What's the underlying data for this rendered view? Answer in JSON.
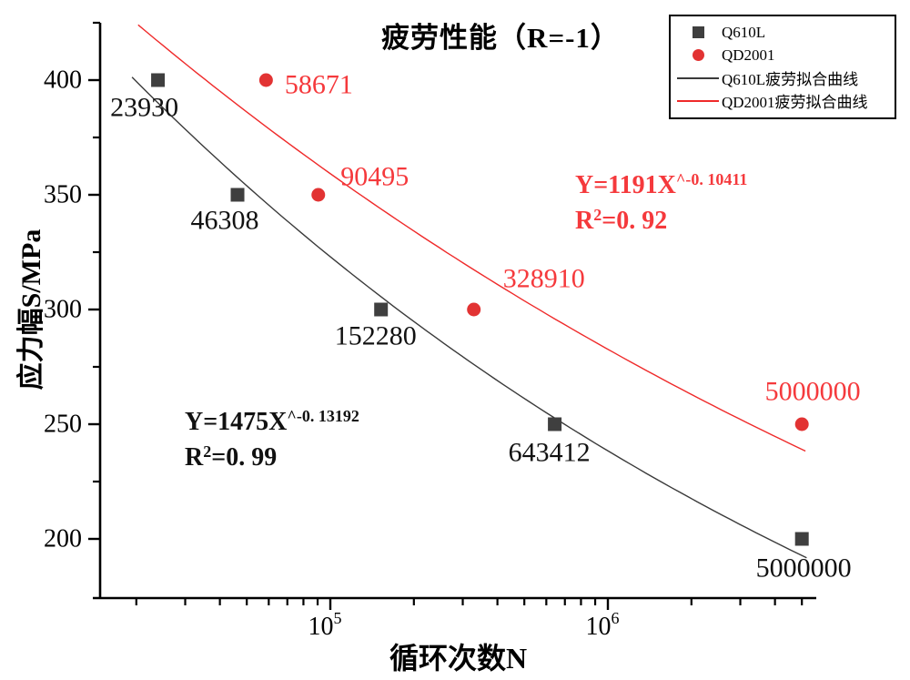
{
  "title": "疲劳性能（R=-1）",
  "axes": {
    "x_label": "循环次数N",
    "y_label": "应力幅S/MPa"
  },
  "legend": {
    "items": [
      {
        "label": "Q610L",
        "marker": "square",
        "color": "#3f3f3f"
      },
      {
        "label": "QD2001",
        "marker": "circle",
        "color": "#e23333"
      },
      {
        "label": "Q610L疲劳拟合曲线",
        "marker": "line",
        "color": "#3a3a3a"
      },
      {
        "label": "QD2001疲劳拟合曲线",
        "marker": "line",
        "color": "#ef2a2a"
      }
    ]
  },
  "equations": {
    "black": {
      "line1": "Y=1475X",
      "sup": "^-0. 13192",
      "r_base": "R",
      "r_sup": "2",
      "r_rest": "=0. 99"
    },
    "red": {
      "line1": "Y=1191X",
      "sup": "^-0. 10411",
      "r_base": "R",
      "r_sup": "2",
      "r_rest": "=0. 92"
    }
  },
  "colors": {
    "axis": "#000000",
    "q610l_marker": "#3f3f3f",
    "q610l_label": "#111111",
    "qd2001_marker": "#e23333",
    "qd2001_label": "#f5393c",
    "black_curve": "#3a3a3a",
    "red_curve": "#ef2a2a"
  },
  "chart_data": {
    "type": "scatter",
    "title": "疲劳性能（R=-1）",
    "xlabel": "循环次数N",
    "ylabel": "应力幅S/MPa",
    "x_scale": "log",
    "xlim": [
      14800,
      5600000
    ],
    "ylim": [
      175,
      425
    ],
    "grid": false,
    "legend_position": "top-right",
    "y_ticks": {
      "major": [
        200,
        250,
        300,
        350,
        400
      ],
      "minor": [
        225,
        275,
        325,
        375,
        425
      ]
    },
    "x_ticks": {
      "major": [
        {
          "value": 100000,
          "base": "10",
          "exp": "5"
        },
        {
          "value": 1000000,
          "base": "10",
          "exp": "6"
        }
      ]
    },
    "series": [
      {
        "name": "Q610L",
        "marker": "square",
        "color": "#3f3f3f",
        "label_color": "#111111",
        "points": [
          {
            "x": 23930,
            "y": 400,
            "label": "23930",
            "dx": -15,
            "dy": 30
          },
          {
            "x": 46308,
            "y": 350,
            "label": "46308",
            "dx": -14,
            "dy": 28
          },
          {
            "x": 152280,
            "y": 300,
            "label": "152280",
            "dx": -6,
            "dy": 29
          },
          {
            "x": 643412,
            "y": 250,
            "label": "643412",
            "dx": -6,
            "dy": 31
          },
          {
            "x": 5000000,
            "y": 200,
            "label": "5000000",
            "dx": 2,
            "dy": 32
          }
        ]
      },
      {
        "name": "QD2001",
        "marker": "circle",
        "color": "#e23333",
        "label_color": "#f5393c",
        "points": [
          {
            "x": 58671,
            "y": 400,
            "label": "58671",
            "dx": 58,
            "dy": 5
          },
          {
            "x": 90495,
            "y": 350,
            "label": "90495",
            "dx": 62,
            "dy": -20
          },
          {
            "x": 328910,
            "y": 300,
            "label": "328910",
            "dx": 77,
            "dy": -34
          },
          {
            "x": 5000000,
            "y": 250,
            "label": "5000000",
            "dx": 12,
            "dy": -36
          }
        ]
      }
    ],
    "fits": [
      {
        "name": "Q610L疲劳拟合曲线",
        "color": "#3a3a3a",
        "coefficient": 1475,
        "exponent": -0.13192,
        "r_squared": 0.99,
        "x_from": 19300,
        "x_to": 5200000
      },
      {
        "name": "QD2001疲劳拟合曲线",
        "color": "#ef2a2a",
        "coefficient": 1191,
        "exponent": -0.10411,
        "r_squared": 0.92,
        "x_from": 20300,
        "x_to": 5150000
      }
    ]
  }
}
